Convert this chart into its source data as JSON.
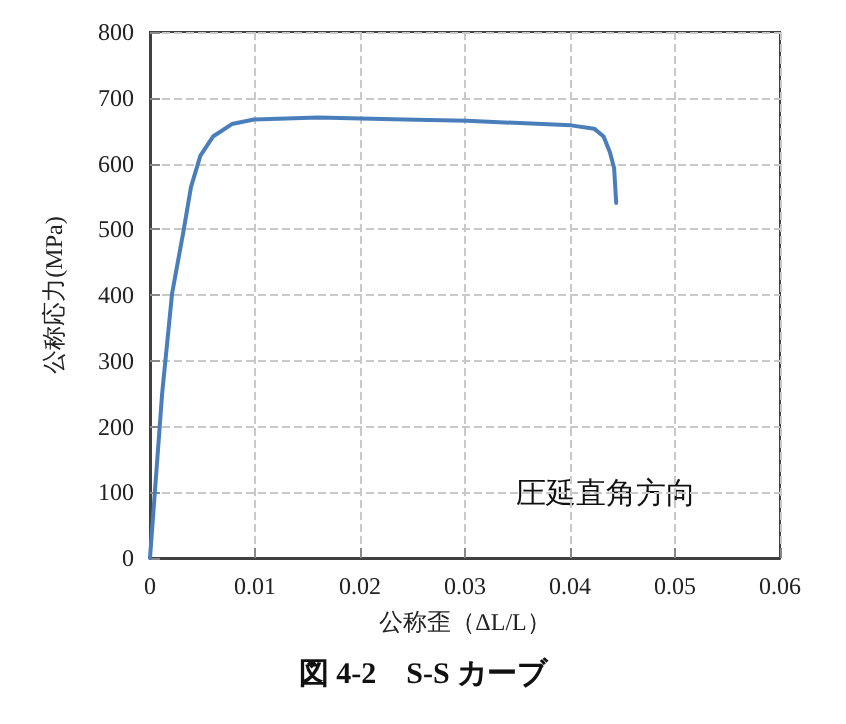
{
  "chart_data": {
    "type": "line",
    "title": "図 4-2　S-S カーブ",
    "xlabel": "公称歪（ΔL/L）",
    "ylabel": "公称応力(MPa)",
    "annotations": [
      "圧延直角方向"
    ],
    "xlim": [
      0,
      0.06
    ],
    "xticks": [
      0,
      0.01,
      0.02,
      0.03,
      0.04,
      0.05,
      0.06
    ],
    "ylim": [
      0,
      800
    ],
    "yticks": [
      0,
      100,
      200,
      300,
      400,
      500,
      600,
      700,
      800
    ],
    "grid": true,
    "marker": "none",
    "line_style": "solid",
    "series": [
      {
        "color": "#4a7ebb",
        "x": [
          0,
          0.00115,
          0.0021,
          0.0032,
          0.0039,
          0.0048,
          0.006,
          0.0078,
          0.0099,
          0.016,
          0.0242,
          0.0302,
          0.0401,
          0.0423,
          0.0432,
          0.0438,
          0.0442,
          0.0444
        ],
        "values": [
          0,
          249,
          402,
          498,
          564,
          612,
          641,
          660,
          667,
          670,
          667,
          665,
          658,
          653,
          641,
          617,
          593,
          540
        ]
      }
    ]
  }
}
